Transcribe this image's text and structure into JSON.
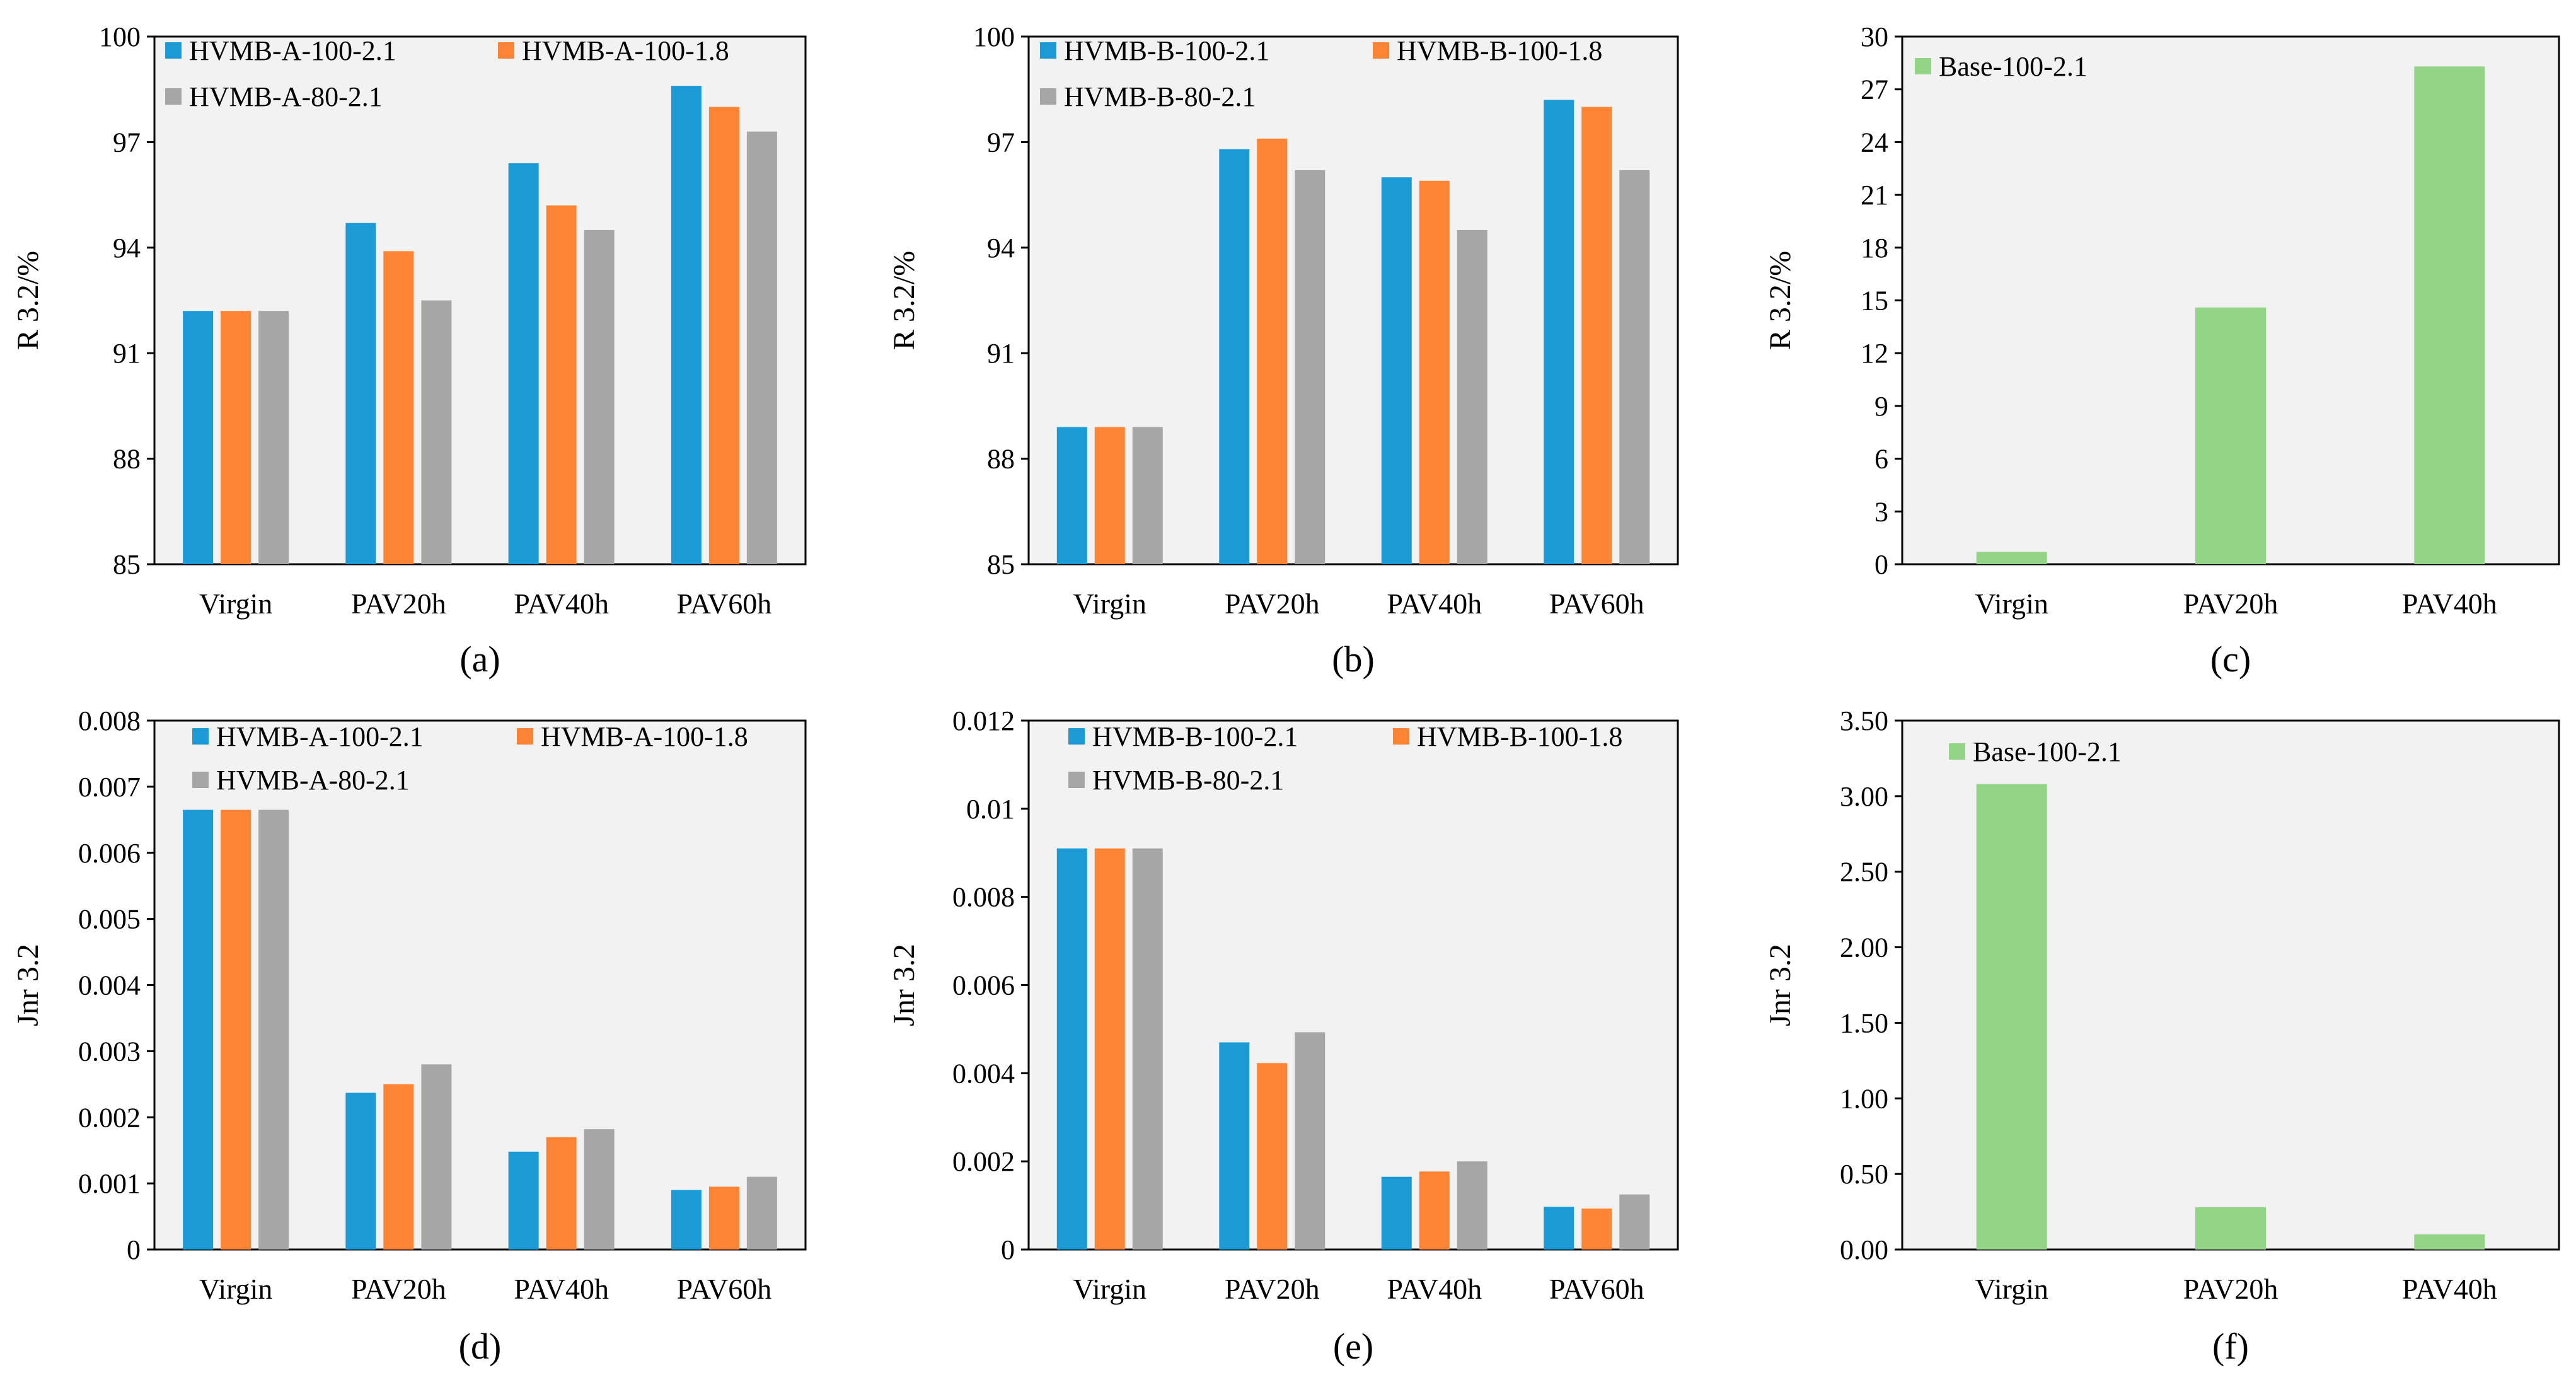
{
  "colors": {
    "blue": "#1C9AD6",
    "orange": "#FD8435",
    "gray": "#A6A6A6",
    "green": "#93D486",
    "plot_bg": "#F2F2F2"
  },
  "chart_data": [
    {
      "id": "a",
      "panel_label": "(a)",
      "type": "bar",
      "ylabel": "R 3.2/%",
      "ylim": [
        85,
        100
      ],
      "yticks": [
        85,
        88,
        91,
        94,
        97,
        100
      ],
      "ytick_labels": [
        "85",
        "88",
        "91",
        "94",
        "97",
        "100"
      ],
      "categories": [
        "Virgin",
        "PAV20h",
        "PAV40h",
        "PAV60h"
      ],
      "legend": "top",
      "series": [
        {
          "name": "HVMB-A-100-2.1",
          "color": "#1C9AD6",
          "values": [
            92.2,
            94.7,
            96.4,
            98.6
          ]
        },
        {
          "name": "HVMB-A-100-1.8",
          "color": "#FD8435",
          "values": [
            92.2,
            93.9,
            95.2,
            98.0
          ]
        },
        {
          "name": "HVMB-A-80-2.1",
          "color": "#A6A6A6",
          "values": [
            92.2,
            92.5,
            94.5,
            97.3
          ]
        }
      ]
    },
    {
      "id": "b",
      "panel_label": "(b)",
      "type": "bar",
      "ylabel": "R 3.2/%",
      "ylim": [
        85,
        100
      ],
      "yticks": [
        85,
        88,
        91,
        94,
        97,
        100
      ],
      "ytick_labels": [
        "85",
        "88",
        "91",
        "94",
        "97",
        "100"
      ],
      "categories": [
        "Virgin",
        "PAV20h",
        "PAV40h",
        "PAV60h"
      ],
      "legend": "top",
      "series": [
        {
          "name": "HVMB-B-100-2.1",
          "color": "#1C9AD6",
          "values": [
            88.9,
            96.8,
            96.0,
            98.2
          ]
        },
        {
          "name": "HVMB-B-100-1.8",
          "color": "#FD8435",
          "values": [
            88.9,
            97.1,
            95.9,
            98.0
          ]
        },
        {
          "name": "HVMB-B-80-2.1",
          "color": "#A6A6A6",
          "values": [
            88.9,
            96.2,
            94.5,
            96.2
          ]
        }
      ]
    },
    {
      "id": "c",
      "panel_label": "(c)",
      "type": "bar",
      "ylabel": "R 3.2/%",
      "ylim": [
        0,
        30
      ],
      "yticks": [
        0,
        3,
        6,
        9,
        12,
        15,
        18,
        21,
        24,
        27,
        30
      ],
      "ytick_labels": [
        "0",
        "3",
        "6",
        "9",
        "12",
        "15",
        "18",
        "21",
        "24",
        "27",
        "30"
      ],
      "categories": [
        "Virgin",
        "PAV20h",
        "PAV40h"
      ],
      "legend": "top-left",
      "series": [
        {
          "name": "Base-100-2.1",
          "color": "#93D486",
          "values": [
            0.7,
            14.6,
            28.3
          ]
        }
      ]
    },
    {
      "id": "d",
      "panel_label": "(d)",
      "type": "bar",
      "ylabel": "Jnr 3.2",
      "ylim": [
        0,
        0.008
      ],
      "yticks": [
        0,
        0.001,
        0.002,
        0.003,
        0.004,
        0.005,
        0.006,
        0.007,
        0.008
      ],
      "ytick_labels": [
        "0",
        "0.001",
        "0.002",
        "0.003",
        "0.004",
        "0.005",
        "0.006",
        "0.007",
        "0.008"
      ],
      "categories": [
        "Virgin",
        "PAV20h",
        "PAV40h",
        "PAV60h"
      ],
      "legend": "top",
      "series": [
        {
          "name": "HVMB-A-100-2.1",
          "color": "#1C9AD6",
          "values": [
            0.00665,
            0.00237,
            0.00148,
            0.0009
          ]
        },
        {
          "name": "HVMB-A-100-1.8",
          "color": "#FD8435",
          "values": [
            0.00665,
            0.0025,
            0.0017,
            0.00095
          ]
        },
        {
          "name": "HVMB-A-80-2.1",
          "color": "#A6A6A6",
          "values": [
            0.00665,
            0.0028,
            0.00182,
            0.0011
          ]
        }
      ]
    },
    {
      "id": "e",
      "panel_label": "(e)",
      "type": "bar",
      "ylabel": "Jnr 3.2",
      "ylim": [
        0,
        0.012
      ],
      "yticks": [
        0,
        0.002,
        0.004,
        0.006,
        0.008,
        0.01,
        0.012
      ],
      "ytick_labels": [
        "0",
        "0.002",
        "0.004",
        "0.006",
        "0.008",
        "0.01",
        "0.012"
      ],
      "categories": [
        "Virgin",
        "PAV20h",
        "PAV40h",
        "PAV60h"
      ],
      "legend": "top",
      "series": [
        {
          "name": "HVMB-B-100-2.1",
          "color": "#1C9AD6",
          "values": [
            0.0091,
            0.0047,
            0.00165,
            0.00097
          ]
        },
        {
          "name": "HVMB-B-100-1.8",
          "color": "#FD8435",
          "values": [
            0.0091,
            0.00423,
            0.00177,
            0.00093
          ]
        },
        {
          "name": "HVMB-B-80-2.1",
          "color": "#A6A6A6",
          "values": [
            0.0091,
            0.00493,
            0.002,
            0.00125
          ]
        }
      ]
    },
    {
      "id": "f",
      "panel_label": "(f)",
      "type": "bar",
      "ylabel": "Jnr 3.2",
      "ylim": [
        0,
        3.5
      ],
      "yticks": [
        0,
        0.5,
        1.0,
        1.5,
        2.0,
        2.5,
        3.0,
        3.5
      ],
      "ytick_labels": [
        "0.00",
        "0.50",
        "1.00",
        "1.50",
        "2.00",
        "2.50",
        "3.00",
        "3.50"
      ],
      "categories": [
        "Virgin",
        "PAV20h",
        "PAV40h"
      ],
      "legend": "top-left",
      "series": [
        {
          "name": "Base-100-2.1",
          "color": "#93D486",
          "values": [
            3.08,
            0.28,
            0.1
          ]
        }
      ]
    }
  ]
}
